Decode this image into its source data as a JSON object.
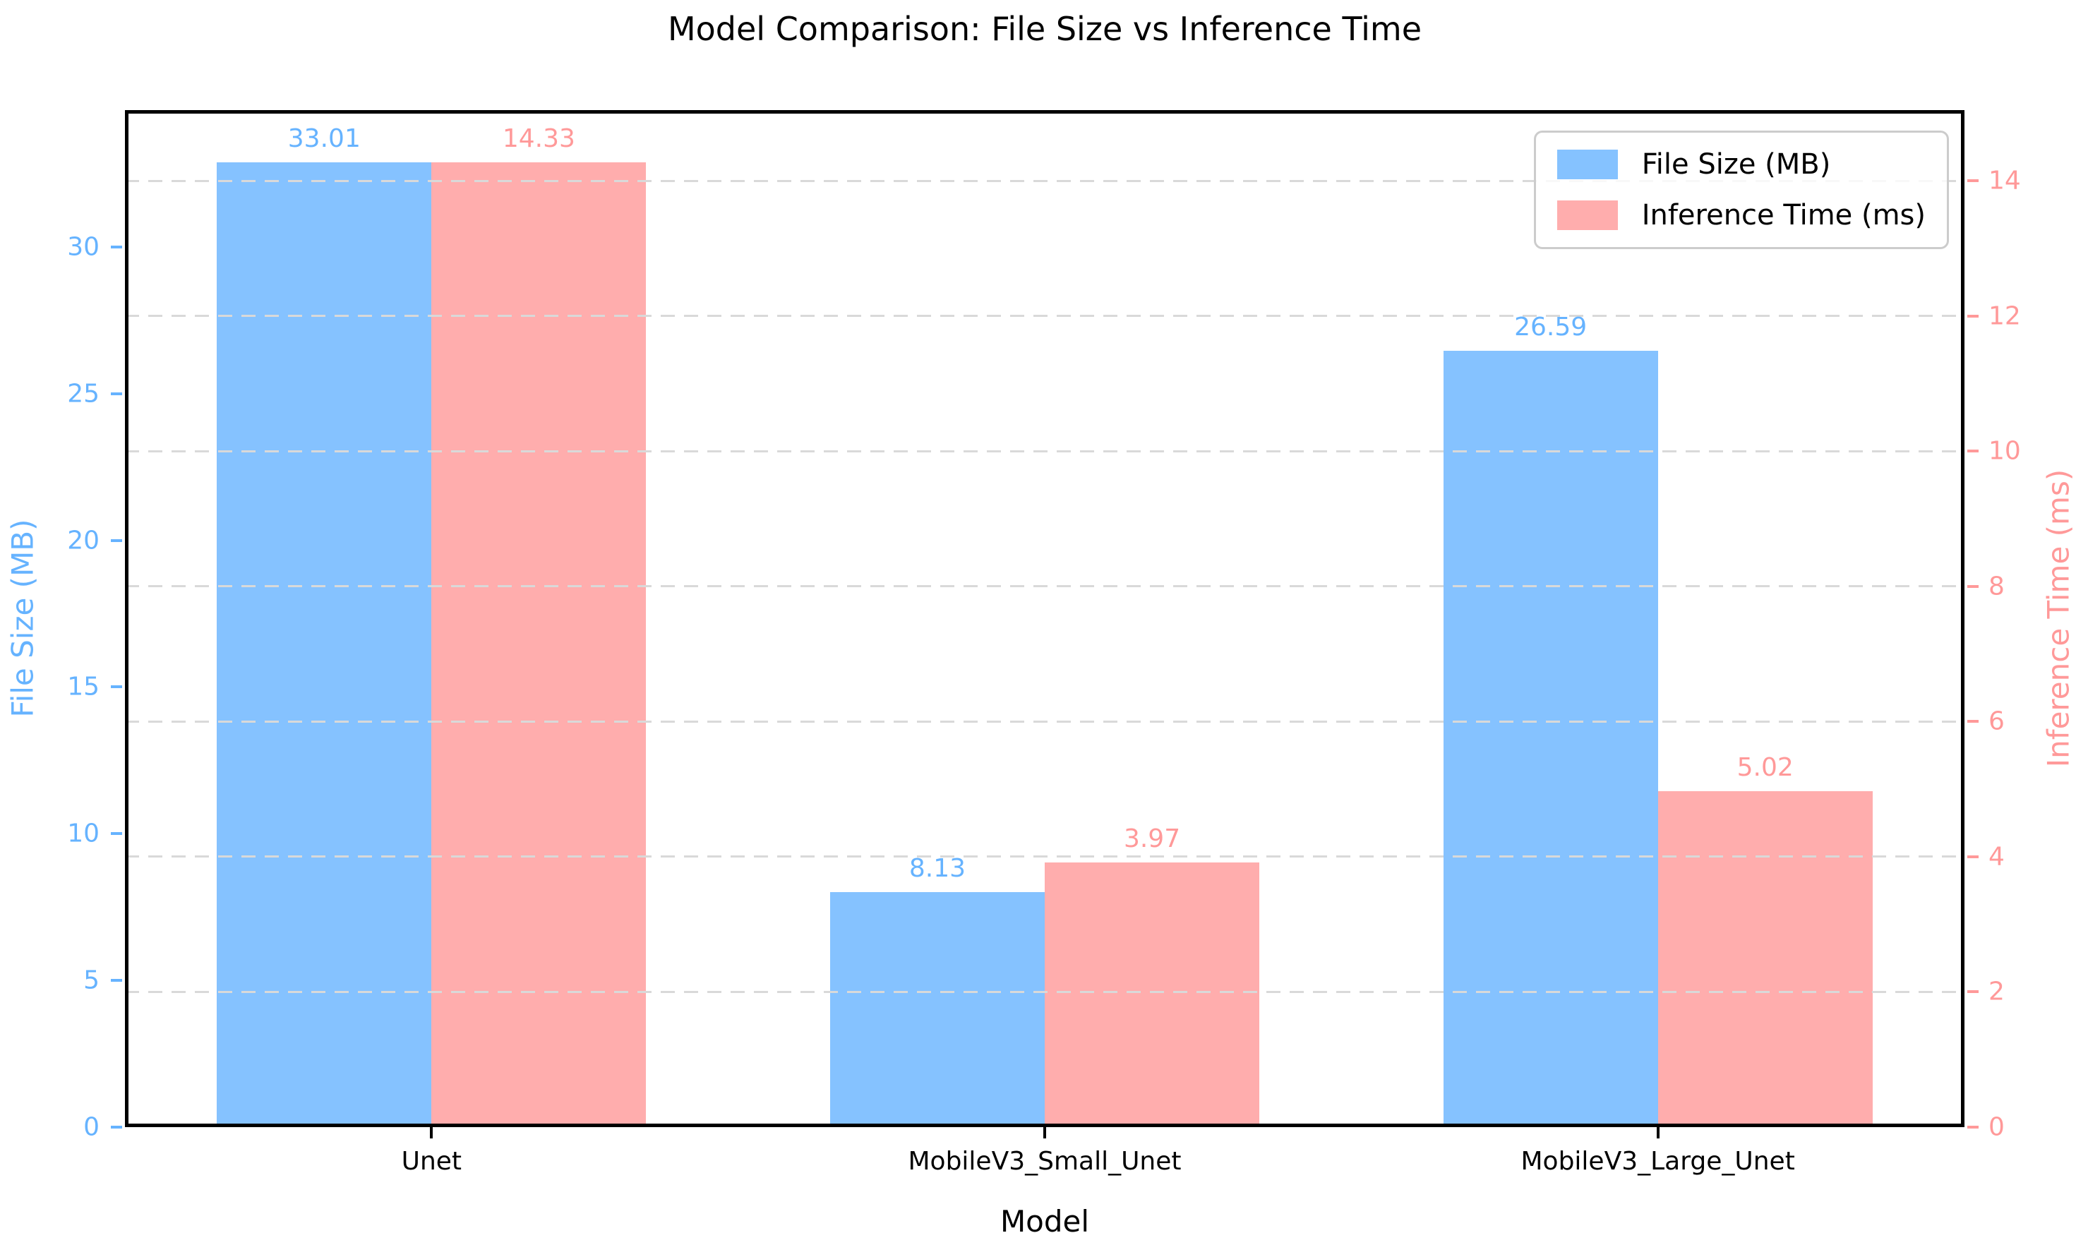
{
  "title": "Model Comparison: File Size vs Inference Time",
  "chart_data": {
    "type": "bar",
    "title": "Model Comparison: File Size vs Inference Time",
    "xlabel": "Model",
    "categories": [
      "Unet",
      "MobileV3_Small_Unet",
      "MobileV3_Large_Unet"
    ],
    "series": [
      {
        "name": "File Size (MB)",
        "axis": "left",
        "color": "#66b3ff",
        "values": [
          33.01,
          8.13,
          26.59
        ]
      },
      {
        "name": "Inference Time (ms)",
        "axis": "right",
        "color": "#ff9999",
        "values": [
          14.33,
          3.97,
          5.02
        ]
      }
    ],
    "left_axis": {
      "label": "File Size (MB)",
      "color": "#66b3ff",
      "ticks": [
        0,
        5,
        10,
        15,
        20,
        25,
        30
      ],
      "max": 34.6605
    },
    "right_axis": {
      "label": "Inference Time (ms)",
      "color": "#ff9999",
      "ticks": [
        0,
        2,
        4,
        6,
        8,
        10,
        12,
        14
      ],
      "max": 15.0465
    },
    "bar_alpha": 0.8,
    "bar_width_fraction": 0.35,
    "value_label_decimals": 2,
    "grid": {
      "on": true,
      "color": "#d9d9d9",
      "style": "dashed",
      "which_axis": "right"
    },
    "legend": {
      "position": "upper right",
      "entries": [
        "File Size (MB)",
        "Inference Time (ms)"
      ]
    }
  }
}
